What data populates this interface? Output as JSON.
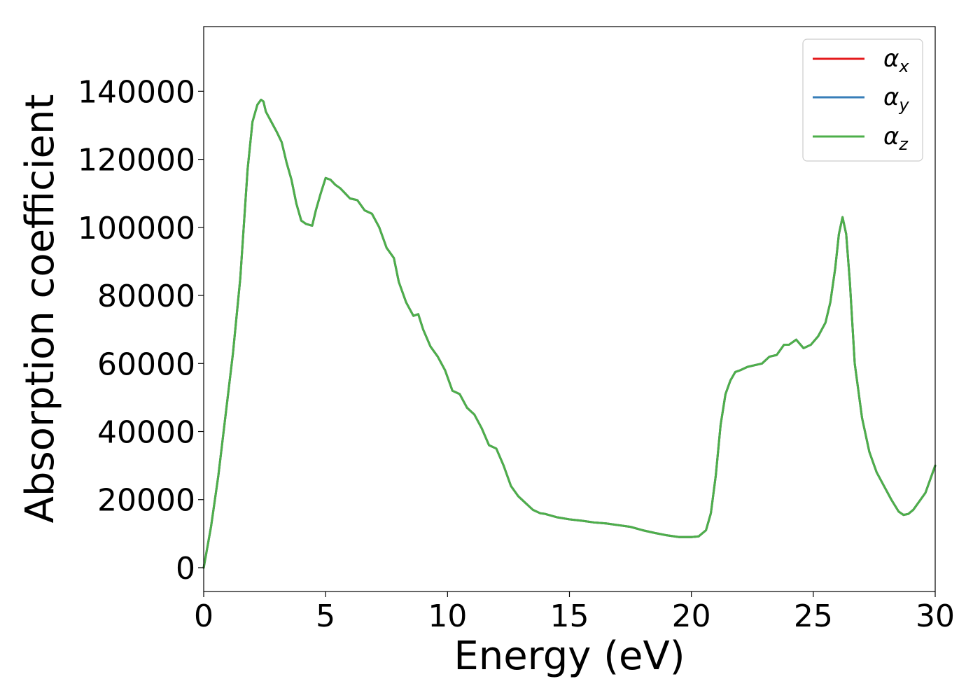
{
  "chart_data": {
    "type": "line",
    "title": "",
    "xlabel": "Energy (eV)",
    "ylabel": "Absorption coefficient",
    "xlim": [
      0,
      30
    ],
    "ylim": [
      -7000,
      159000
    ],
    "x_ticks": [
      0,
      5,
      10,
      15,
      20,
      25,
      30
    ],
    "x_tick_labels": [
      "0",
      "5",
      "10",
      "15",
      "20",
      "25",
      "30"
    ],
    "y_ticks": [
      0,
      20000,
      40000,
      60000,
      80000,
      100000,
      120000,
      140000
    ],
    "y_tick_labels": [
      "0",
      "20000",
      "40000",
      "60000",
      "80000",
      "100000",
      "120000",
      "140000"
    ],
    "grid": false,
    "legend_position": "top-right",
    "series": [
      {
        "name": "αx",
        "name_base": "α",
        "name_sub": "x",
        "color": "#e41a1c",
        "x": [
          0,
          0.3,
          0.6,
          0.9,
          1.2,
          1.5,
          1.8,
          2.0,
          2.2,
          2.35,
          2.45,
          2.55,
          2.7,
          2.85,
          3.0,
          3.2,
          3.4,
          3.6,
          3.8,
          4.0,
          4.2,
          4.45,
          4.6,
          4.8,
          5.0,
          5.2,
          5.4,
          5.6,
          5.8,
          6.0,
          6.3,
          6.6,
          6.9,
          7.2,
          7.5,
          7.8,
          8.0,
          8.3,
          8.6,
          8.8,
          9.0,
          9.3,
          9.6,
          9.9,
          10.2,
          10.5,
          10.8,
          11.1,
          11.4,
          11.7,
          12.0,
          12.3,
          12.6,
          12.9,
          13.2,
          13.5,
          13.8,
          14.0,
          14.5,
          15.0,
          15.5,
          16.0,
          16.5,
          17.0,
          17.5,
          18.0,
          18.5,
          19.0,
          19.5,
          20.0,
          20.3,
          20.6,
          20.8,
          21.0,
          21.2,
          21.4,
          21.6,
          21.8,
          22.0,
          22.3,
          22.6,
          22.9,
          23.2,
          23.5,
          23.8,
          24.0,
          24.3,
          24.6,
          24.9,
          25.2,
          25.5,
          25.7,
          25.9,
          26.05,
          26.2,
          26.35,
          26.5,
          26.7,
          27.0,
          27.3,
          27.6,
          27.9,
          28.2,
          28.5,
          28.7,
          28.9,
          29.1,
          29.3,
          29.6,
          29.8,
          30.0
        ],
        "y": [
          0,
          12000,
          27000,
          45000,
          63000,
          85000,
          117000,
          131000,
          136000,
          137500,
          137000,
          134000,
          132000,
          130000,
          128000,
          125000,
          119000,
          114000,
          107000,
          102000,
          101000,
          100500,
          105000,
          110000,
          114500,
          114000,
          112500,
          111500,
          110000,
          108500,
          108000,
          105000,
          104000,
          100000,
          94000,
          91000,
          84000,
          78000,
          74000,
          74500,
          70000,
          65000,
          62000,
          58000,
          52000,
          51000,
          47000,
          45000,
          41000,
          36000,
          35000,
          30000,
          24000,
          21000,
          19000,
          17000,
          16000,
          15800,
          14800,
          14200,
          13800,
          13300,
          13000,
          12500,
          12000,
          11000,
          10200,
          9500,
          9000,
          9000,
          9200,
          11000,
          16000,
          27000,
          42000,
          51000,
          55000,
          57500,
          58000,
          59000,
          59500,
          60000,
          62000,
          62500,
          65500,
          65500,
          67000,
          64500,
          65500,
          68000,
          72000,
          78000,
          88000,
          98000,
          103000,
          98000,
          84000,
          60000,
          44000,
          34000,
          28000,
          24000,
          20000,
          16500,
          15500,
          15800,
          17000,
          19000,
          22000,
          26000,
          30000
        ]
      },
      {
        "name": "αy",
        "name_base": "α",
        "name_sub": "y",
        "color": "#377eb8",
        "x": [
          0,
          0.3,
          0.6,
          0.9,
          1.2,
          1.5,
          1.8,
          2.0,
          2.2,
          2.35,
          2.45,
          2.55,
          2.7,
          2.85,
          3.0,
          3.2,
          3.4,
          3.6,
          3.8,
          4.0,
          4.2,
          4.45,
          4.6,
          4.8,
          5.0,
          5.2,
          5.4,
          5.6,
          5.8,
          6.0,
          6.3,
          6.6,
          6.9,
          7.2,
          7.5,
          7.8,
          8.0,
          8.3,
          8.6,
          8.8,
          9.0,
          9.3,
          9.6,
          9.9,
          10.2,
          10.5,
          10.8,
          11.1,
          11.4,
          11.7,
          12.0,
          12.3,
          12.6,
          12.9,
          13.2,
          13.5,
          13.8,
          14.0,
          14.5,
          15.0,
          15.5,
          16.0,
          16.5,
          17.0,
          17.5,
          18.0,
          18.5,
          19.0,
          19.5,
          20.0,
          20.3,
          20.6,
          20.8,
          21.0,
          21.2,
          21.4,
          21.6,
          21.8,
          22.0,
          22.3,
          22.6,
          22.9,
          23.2,
          23.5,
          23.8,
          24.0,
          24.3,
          24.6,
          24.9,
          25.2,
          25.5,
          25.7,
          25.9,
          26.05,
          26.2,
          26.35,
          26.5,
          26.7,
          27.0,
          27.3,
          27.6,
          27.9,
          28.2,
          28.5,
          28.7,
          28.9,
          29.1,
          29.3,
          29.6,
          29.8,
          30.0
        ],
        "y": [
          0,
          12000,
          27000,
          45000,
          63000,
          85000,
          117000,
          131000,
          136000,
          137500,
          137000,
          134000,
          132000,
          130000,
          128000,
          125000,
          119000,
          114000,
          107000,
          102000,
          101000,
          100500,
          105000,
          110000,
          114500,
          114000,
          112500,
          111500,
          110000,
          108500,
          108000,
          105000,
          104000,
          100000,
          94000,
          91000,
          84000,
          78000,
          74000,
          74500,
          70000,
          65000,
          62000,
          58000,
          52000,
          51000,
          47000,
          45000,
          41000,
          36000,
          35000,
          30000,
          24000,
          21000,
          19000,
          17000,
          16000,
          15800,
          14800,
          14200,
          13800,
          13300,
          13000,
          12500,
          12000,
          11000,
          10200,
          9500,
          9000,
          9000,
          9200,
          11000,
          16000,
          27000,
          42000,
          51000,
          55000,
          57500,
          58000,
          59000,
          59500,
          60000,
          62000,
          62500,
          65500,
          65500,
          67000,
          64500,
          65500,
          68000,
          72000,
          78000,
          88000,
          98000,
          103000,
          98000,
          84000,
          60000,
          44000,
          34000,
          28000,
          24000,
          20000,
          16500,
          15500,
          15800,
          17000,
          19000,
          22000,
          26000,
          30000
        ]
      },
      {
        "name": "αz",
        "name_base": "α",
        "name_sub": "z",
        "color": "#4daf4a",
        "x": [
          0,
          0.3,
          0.6,
          0.9,
          1.2,
          1.5,
          1.8,
          2.0,
          2.2,
          2.35,
          2.45,
          2.55,
          2.7,
          2.85,
          3.0,
          3.2,
          3.4,
          3.6,
          3.8,
          4.0,
          4.2,
          4.45,
          4.6,
          4.8,
          5.0,
          5.2,
          5.4,
          5.6,
          5.8,
          6.0,
          6.3,
          6.6,
          6.9,
          7.2,
          7.5,
          7.8,
          8.0,
          8.3,
          8.6,
          8.8,
          9.0,
          9.3,
          9.6,
          9.9,
          10.2,
          10.5,
          10.8,
          11.1,
          11.4,
          11.7,
          12.0,
          12.3,
          12.6,
          12.9,
          13.2,
          13.5,
          13.8,
          14.0,
          14.5,
          15.0,
          15.5,
          16.0,
          16.5,
          17.0,
          17.5,
          18.0,
          18.5,
          19.0,
          19.5,
          20.0,
          20.3,
          20.6,
          20.8,
          21.0,
          21.2,
          21.4,
          21.6,
          21.8,
          22.0,
          22.3,
          22.6,
          22.9,
          23.2,
          23.5,
          23.8,
          24.0,
          24.3,
          24.6,
          24.9,
          25.2,
          25.5,
          25.7,
          25.9,
          26.05,
          26.2,
          26.35,
          26.5,
          26.7,
          27.0,
          27.3,
          27.6,
          27.9,
          28.2,
          28.5,
          28.7,
          28.9,
          29.1,
          29.3,
          29.6,
          29.8,
          30.0
        ],
        "y": [
          0,
          12000,
          27000,
          45000,
          63000,
          85000,
          117000,
          131000,
          136000,
          137500,
          137000,
          134000,
          132000,
          130000,
          128000,
          125000,
          119000,
          114000,
          107000,
          102000,
          101000,
          100500,
          105000,
          110000,
          114500,
          114000,
          112500,
          111500,
          110000,
          108500,
          108000,
          105000,
          104000,
          100000,
          94000,
          91000,
          84000,
          78000,
          74000,
          74500,
          70000,
          65000,
          62000,
          58000,
          52000,
          51000,
          47000,
          45000,
          41000,
          36000,
          35000,
          30000,
          24000,
          21000,
          19000,
          17000,
          16000,
          15800,
          14800,
          14200,
          13800,
          13300,
          13000,
          12500,
          12000,
          11000,
          10200,
          9500,
          9000,
          9000,
          9200,
          11000,
          16000,
          27000,
          42000,
          51000,
          55000,
          57500,
          58000,
          59000,
          59500,
          60000,
          62000,
          62500,
          65500,
          65500,
          67000,
          64500,
          65500,
          68000,
          72000,
          78000,
          88000,
          98000,
          103000,
          98000,
          84000,
          60000,
          44000,
          34000,
          28000,
          24000,
          20000,
          16500,
          15500,
          15800,
          17000,
          19000,
          22000,
          26000,
          30000
        ]
      }
    ]
  }
}
